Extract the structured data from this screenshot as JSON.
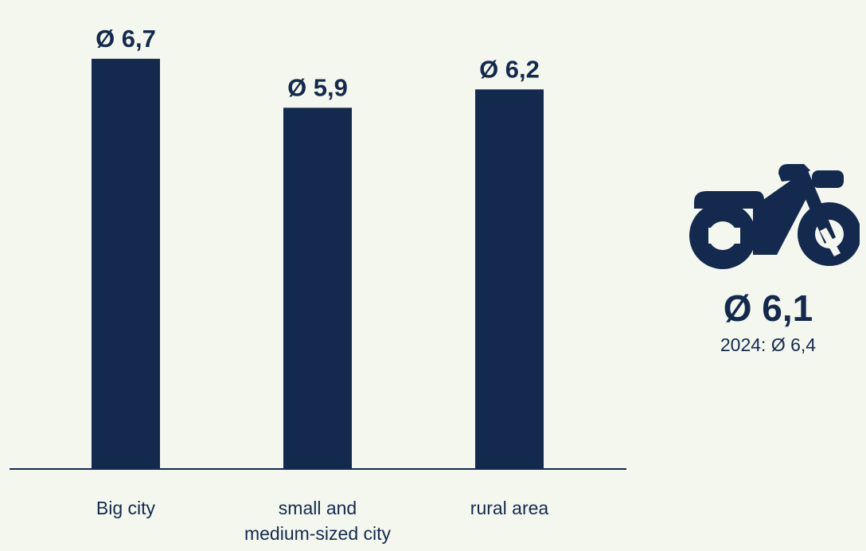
{
  "chart_data": {
    "type": "bar",
    "categories": [
      "Big city",
      "small and\nmedium-sized city",
      "rural area"
    ],
    "values": [
      6.7,
      5.9,
      6.2
    ],
    "value_labels": [
      "Ø 6,7",
      "Ø 5,9",
      "Ø 6,2"
    ],
    "title": "",
    "xlabel": "",
    "ylabel": "",
    "ylim": [
      0,
      7.4
    ],
    "grid": false,
    "legend": "none",
    "bar_color": "#132a4e",
    "axis_color": "#132a4e"
  },
  "summary": {
    "icon": "motorcycle-icon",
    "average_label": "Ø 6,1",
    "previous_label": "2024: Ø 6,4",
    "color": "#132a4e"
  }
}
